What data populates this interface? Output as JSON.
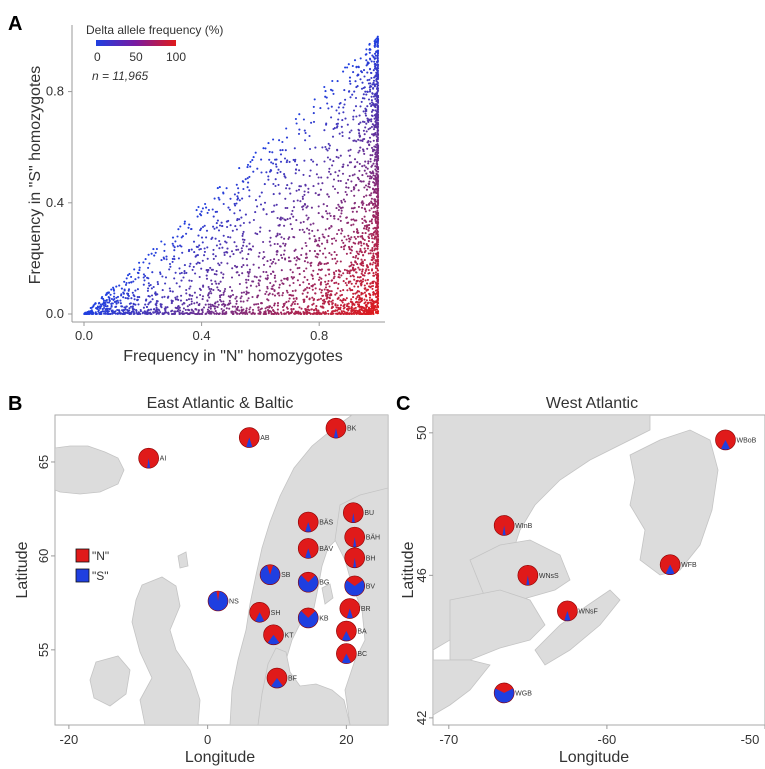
{
  "colors": {
    "N": "#e01a1a",
    "S": "#1f3fe0",
    "land": "#dcdcdc"
  },
  "panelA": {
    "letter": "A",
    "colorbar_title": "Delta allele frequency (%)",
    "colorbar_ticks": [
      "0",
      "50",
      "100"
    ],
    "n_label": "n = 11,965",
    "xlabel": "Frequency in \"N\" homozygotes",
    "ylabel": "Frequency in \"S\" homozygotes",
    "xticks": [
      "0.0",
      "0.4",
      "0.8"
    ],
    "yticks": [
      "0.0",
      "0.4",
      "0.8"
    ]
  },
  "chart_data": [
    {
      "type": "scatter",
      "xlabel": "Frequency in \"N\" homozygotes",
      "ylabel": "Frequency in \"S\" homozygotes",
      "xlim": [
        0,
        1
      ],
      "ylim": [
        0,
        1
      ],
      "color_by": "Delta allele frequency (%)",
      "color_range": [
        0,
        100
      ],
      "n_points": 11965,
      "points_description": "points lie in triangle y <= x; density highest near x=1; colour = (x - y) * 100",
      "sample_points": [
        [
          0.05,
          0.01
        ],
        [
          0.12,
          0.03
        ],
        [
          0.2,
          0.06
        ],
        [
          0.3,
          0.1
        ],
        [
          0.4,
          0.05
        ],
        [
          0.5,
          0.2
        ],
        [
          0.6,
          0.1
        ],
        [
          0.7,
          0.3
        ],
        [
          0.8,
          0.5
        ],
        [
          0.9,
          0.7
        ],
        [
          0.95,
          0.85
        ],
        [
          1.0,
          0.98
        ],
        [
          1.0,
          0.5
        ],
        [
          1.0,
          0.0
        ],
        [
          0.85,
          0.05
        ],
        [
          0.75,
          0.02
        ]
      ]
    },
    {
      "type": "scatter",
      "title": "East Atlantic & Baltic",
      "xlabel": "Longitude",
      "ylabel": "Latitude",
      "xlim": [
        -22,
        26
      ],
      "ylim": [
        51,
        67.5
      ],
      "xticks": [
        -20,
        0,
        20
      ],
      "yticks": [
        55,
        60,
        65
      ],
      "legend": [
        "\"N\"",
        "\"S\""
      ],
      "sites": [
        {
          "label": "AI",
          "lon": -8.5,
          "lat": 65.2,
          "N": 0.95
        },
        {
          "label": "AB",
          "lon": 6.0,
          "lat": 66.3,
          "N": 0.9
        },
        {
          "label": "BK",
          "lon": 18.5,
          "lat": 66.8,
          "N": 0.93
        },
        {
          "label": "BU",
          "lon": 21.0,
          "lat": 62.3,
          "N": 0.95
        },
        {
          "label": "BÄS",
          "lon": 14.5,
          "lat": 61.8,
          "N": 0.9
        },
        {
          "label": "BÄH",
          "lon": 21.2,
          "lat": 61.0,
          "N": 0.95
        },
        {
          "label": "BÄV",
          "lon": 14.5,
          "lat": 60.4,
          "N": 0.9
        },
        {
          "label": "BH",
          "lon": 21.2,
          "lat": 59.9,
          "N": 0.95
        },
        {
          "label": "SB",
          "lon": 9.0,
          "lat": 59.0,
          "N": 0.1
        },
        {
          "label": "BG",
          "lon": 14.5,
          "lat": 58.6,
          "N": 0.25
        },
        {
          "label": "BV",
          "lon": 21.2,
          "lat": 58.4,
          "N": 0.3
        },
        {
          "label": "NS",
          "lon": 1.5,
          "lat": 57.6,
          "N": 0.05
        },
        {
          "label": "SH",
          "lon": 7.5,
          "lat": 57.0,
          "N": 0.85
        },
        {
          "label": "BR",
          "lon": 20.5,
          "lat": 57.2,
          "N": 0.9
        },
        {
          "label": "KB",
          "lon": 14.5,
          "lat": 56.7,
          "N": 0.25
        },
        {
          "label": "KT",
          "lon": 9.5,
          "lat": 55.8,
          "N": 0.8
        },
        {
          "label": "BA",
          "lon": 20.0,
          "lat": 56.0,
          "N": 0.85
        },
        {
          "label": "BC",
          "lon": 20.0,
          "lat": 54.8,
          "N": 0.85
        },
        {
          "label": "BF",
          "lon": 10.0,
          "lat": 53.5,
          "N": 0.8
        }
      ]
    },
    {
      "type": "scatter",
      "title": "West Atlantic",
      "xlabel": "Longitude",
      "ylabel": "Latitude",
      "xlim": [
        -71,
        -50
      ],
      "ylim": [
        41.8,
        50.5
      ],
      "xticks": [
        -70,
        -60,
        -50
      ],
      "yticks": [
        42,
        46,
        50
      ],
      "sites": [
        {
          "label": "WBoB",
          "lon": -52.5,
          "lat": 49.8,
          "N": 0.85
        },
        {
          "label": "WInB",
          "lon": -66.5,
          "lat": 47.4,
          "N": 0.95
        },
        {
          "label": "WFB",
          "lon": -56.0,
          "lat": 46.3,
          "N": 0.85
        },
        {
          "label": "WNsS",
          "lon": -65.0,
          "lat": 46.0,
          "N": 0.95
        },
        {
          "label": "WNsF",
          "lon": -62.5,
          "lat": 45.0,
          "N": 0.9
        },
        {
          "label": "WGB",
          "lon": -66.5,
          "lat": 42.7,
          "N": 0.35
        }
      ]
    }
  ],
  "panelB": {
    "letter": "B",
    "title": "East Atlantic & Baltic",
    "xlabel": "Longitude",
    "ylabel": "Latitude",
    "xticks": [
      "-20",
      "0",
      "20"
    ],
    "yticks": [
      "55",
      "60",
      "65"
    ],
    "legend_N": "\"N\"",
    "legend_S": "\"S\""
  },
  "panelC": {
    "letter": "C",
    "title": "West Atlantic",
    "xlabel": "Longitude",
    "ylabel": "Latitude",
    "xticks": [
      "-70",
      "-60",
      "-50"
    ],
    "yticks": [
      "42",
      "46",
      "50"
    ]
  }
}
